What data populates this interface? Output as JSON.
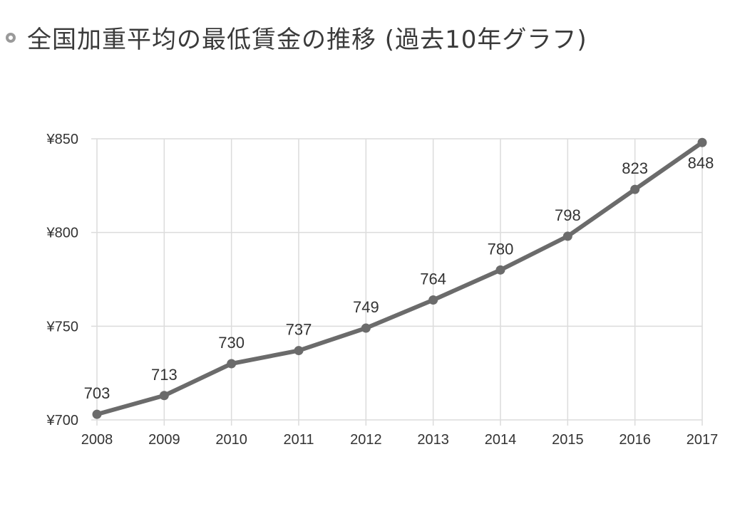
{
  "header": {
    "title": "全国加重平均の最低賃金の推移 (過去10年グラフ)"
  },
  "chart_data": {
    "type": "line",
    "title": "全国加重平均の最低賃金の推移 (過去10年グラフ)",
    "xlabel": "",
    "ylabel": "",
    "categories": [
      "2008",
      "2009",
      "2010",
      "2011",
      "2012",
      "2013",
      "2014",
      "2015",
      "2016",
      "2017"
    ],
    "series": [
      {
        "values": [
          703,
          713,
          730,
          737,
          749,
          764,
          780,
          798,
          823,
          848
        ]
      }
    ],
    "data_labels": [
      "703",
      "713",
      "730",
      "737",
      "749",
      "764",
      "780",
      "798",
      "823",
      "848"
    ],
    "ylim": [
      700,
      850
    ],
    "yticks": [
      700,
      750,
      800,
      850
    ],
    "ytick_labels": [
      "¥700",
      "¥750",
      "¥800",
      "¥850"
    ],
    "grid": true,
    "line_color": "#6b6b6b",
    "grid_color": "#dcdcdc"
  }
}
